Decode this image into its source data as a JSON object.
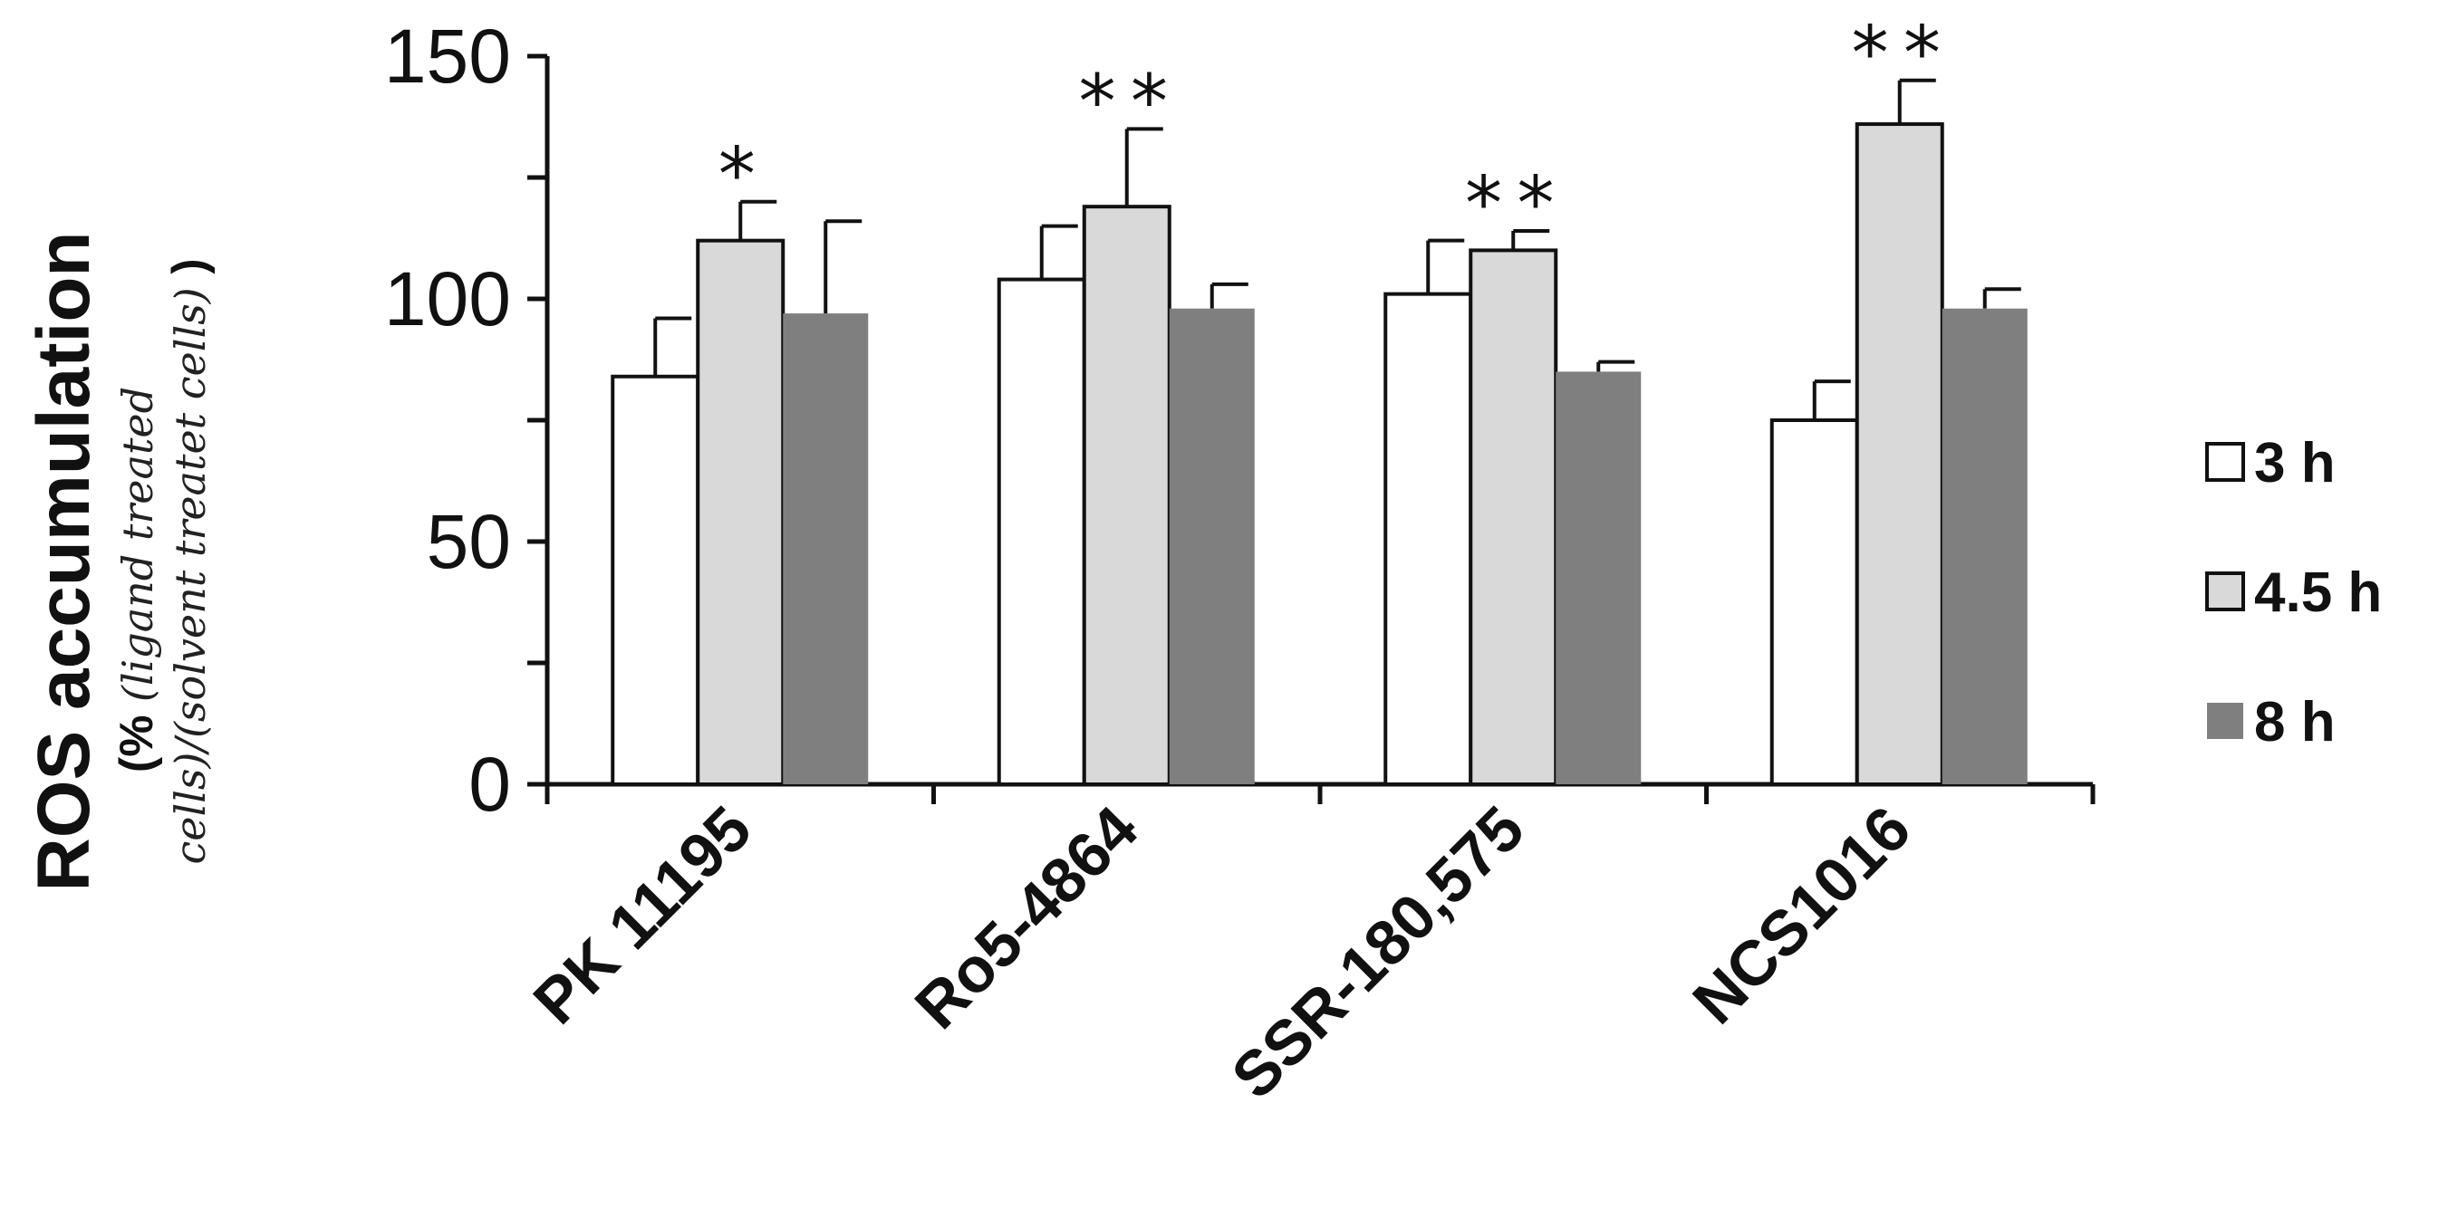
{
  "chart_data": {
    "type": "bar",
    "title": "",
    "ylabel": "ROS accumulation",
    "ylabel_sub_prefix": "(% ",
    "ylabel_sub_line1": "(ligand treated",
    "ylabel_sub_line2": "cells)/(solvent treatet cells)",
    "ylabel_sub_suffix": " )",
    "xlabel": "",
    "ylim": [
      0,
      150
    ],
    "yticks": [
      0,
      50,
      100,
      150
    ],
    "categories": [
      "PK 11195",
      "Ro5-4864",
      "SSR-180,575",
      "NCS1016"
    ],
    "series": [
      {
        "name": "3 h",
        "values": [
          84,
          104,
          101,
          75
        ],
        "errors": [
          12,
          11,
          11,
          8
        ],
        "color": "#ffffff"
      },
      {
        "name": "4.5 h",
        "values": [
          112,
          119,
          110,
          136
        ],
        "errors": [
          8,
          16,
          4,
          9
        ],
        "color": "#d9d9d9"
      },
      {
        "name": "8 h",
        "values": [
          97,
          98,
          85,
          98
        ],
        "errors": [
          19,
          5,
          2,
          4
        ],
        "color": "#7f7f7f"
      }
    ],
    "significance": [
      {
        "category": 0,
        "series": 1,
        "label": "*"
      },
      {
        "category": 1,
        "series": 1,
        "label": "**"
      },
      {
        "category": 2,
        "series": 1,
        "label": "**"
      },
      {
        "category": 3,
        "series": 1,
        "label": "**"
      }
    ],
    "legend_position": "right",
    "grid": false
  }
}
